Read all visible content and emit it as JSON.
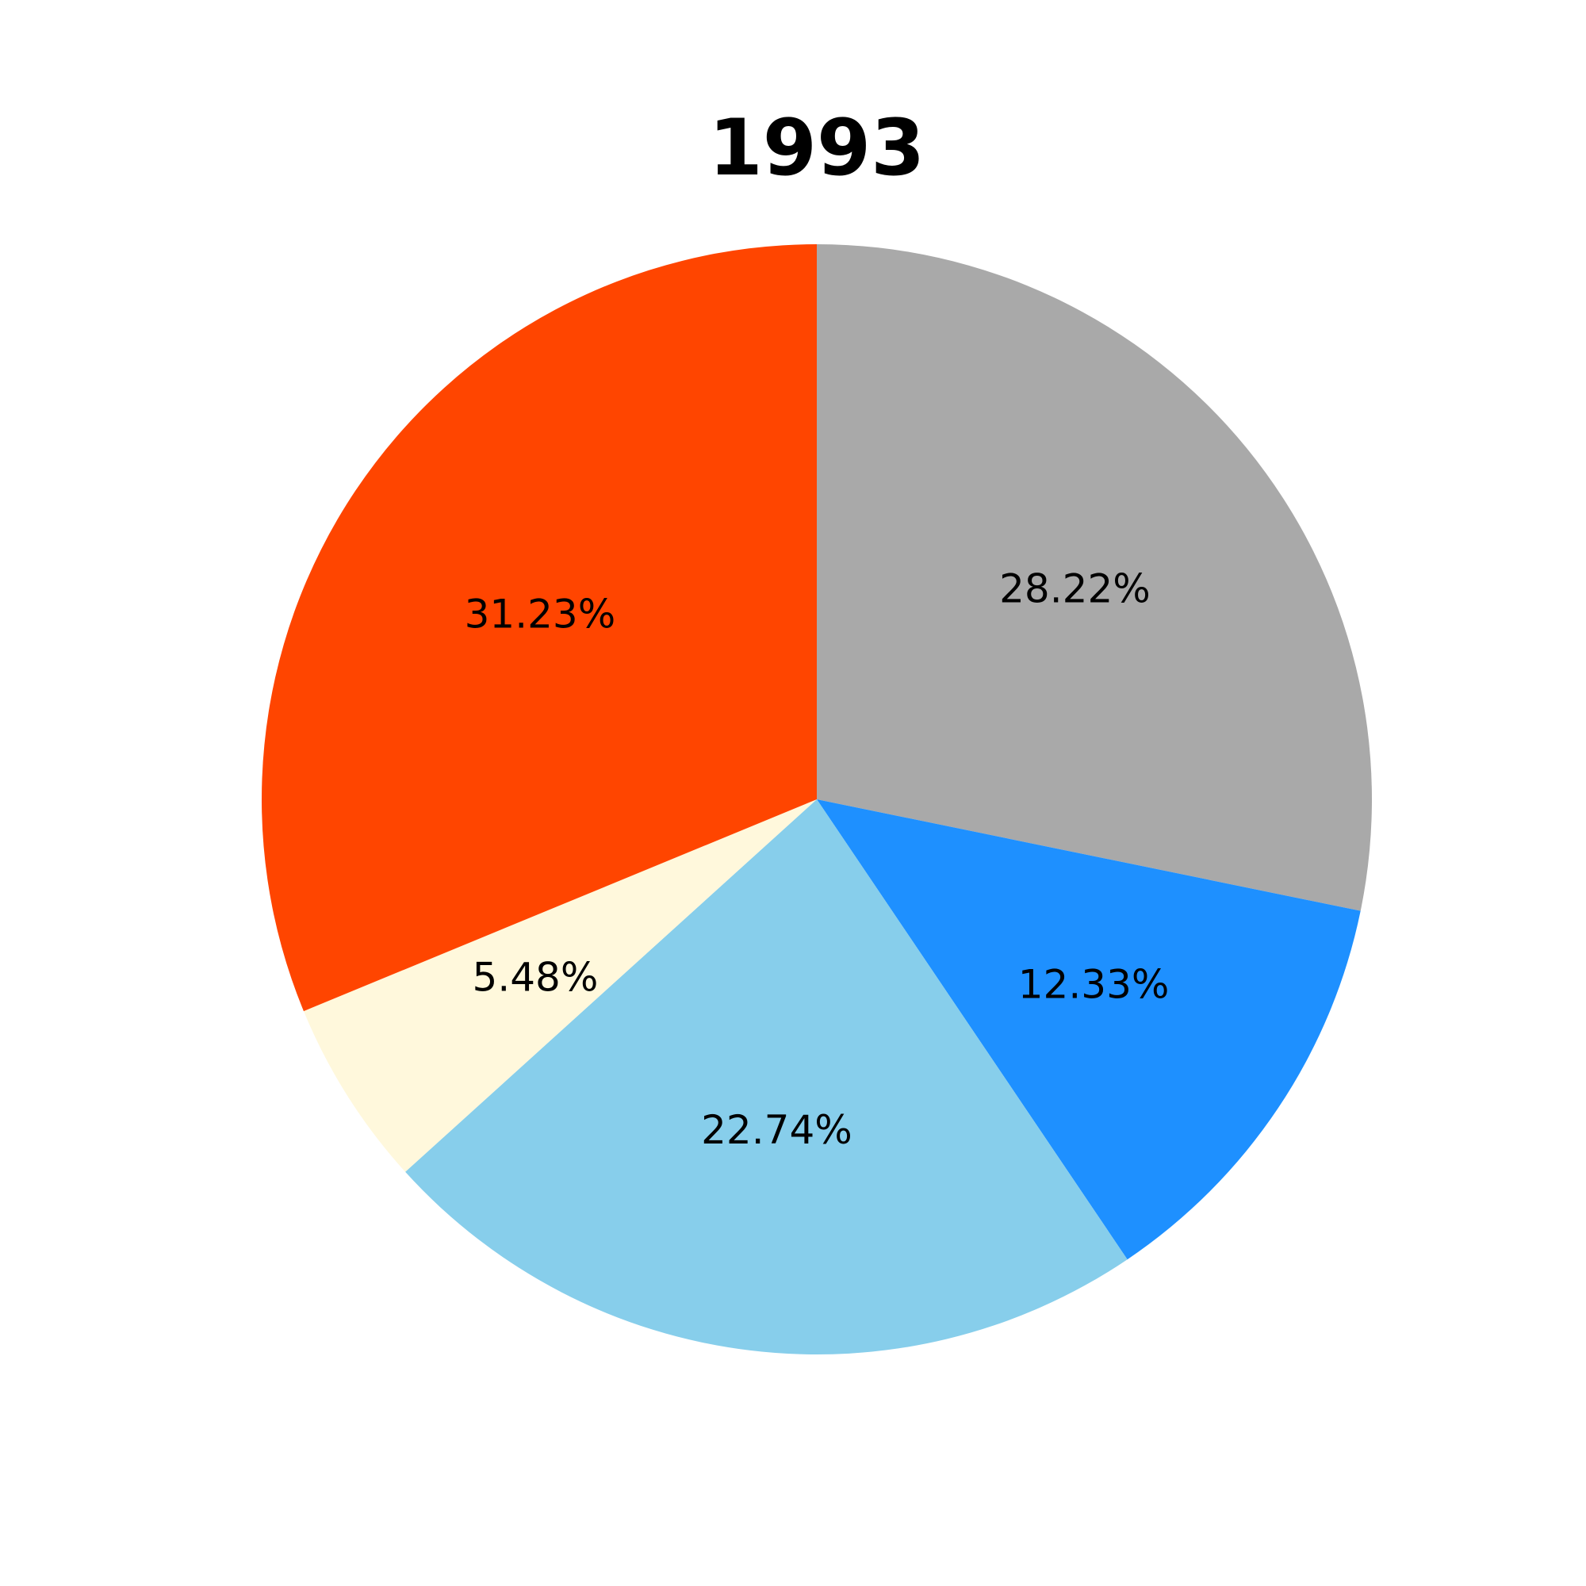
{
  "chart_data": {
    "type": "pie",
    "title": "1993",
    "slices": [
      {
        "value": 28.22,
        "label": "28.22%",
        "color": "#A9A9A9"
      },
      {
        "value": 12.33,
        "label": "12.33%",
        "color": "#1E90FF"
      },
      {
        "value": 22.74,
        "label": "22.74%",
        "color": "#87CEEB"
      },
      {
        "value": 5.48,
        "label": "5.48%",
        "color": "#FFF8DC"
      },
      {
        "value": 31.23,
        "label": "31.23%",
        "color": "#FF4500"
      }
    ],
    "start_angle": "top",
    "direction": "clockwise",
    "legend": "none"
  }
}
